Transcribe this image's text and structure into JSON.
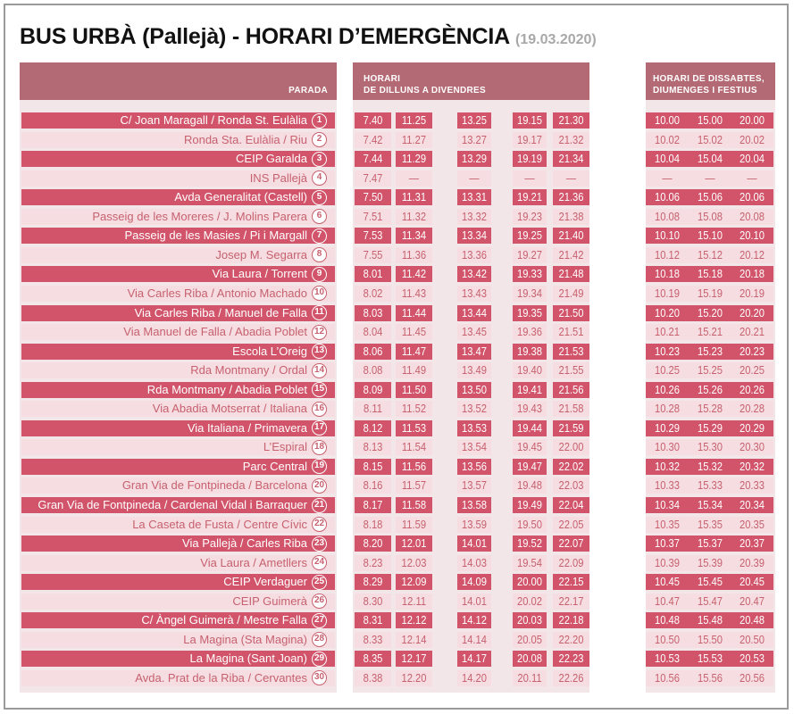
{
  "title": "BUS URBÀ (Pallejà) - HORARI D’EMERGÈNCIA",
  "date": "(19.03.2020)",
  "headers": {
    "parada": "PARADA",
    "weekday_line1": "HORARI",
    "weekday_line2": "DE DILLUNS A DIVENDRES",
    "weekend_line1": "HORARI DE DISSABTES,",
    "weekend_line2": "DIUMENGES I FESTIUS"
  },
  "colors": {
    "dark_row": "#d1546a",
    "light_row": "#f5dde1",
    "header": "#b46a74",
    "panel": "#f3e6e8"
  },
  "stops": [
    {
      "num": "1",
      "name": "C/ Joan Maragall / Ronda St. Eulàlia",
      "weekday": [
        "7.40",
        "11.25",
        "13.25",
        "19.15",
        "21.30"
      ],
      "weekend": [
        "10.00",
        "15.00",
        "20.00"
      ]
    },
    {
      "num": "2",
      "name": "Ronda Sta. Eulàlia / Riu",
      "weekday": [
        "7.42",
        "11.27",
        "13.27",
        "19.17",
        "21.32"
      ],
      "weekend": [
        "10.02",
        "15.02",
        "20.02"
      ]
    },
    {
      "num": "3",
      "name": "CEIP Garalda",
      "weekday": [
        "7.44",
        "11.29",
        "13.29",
        "19.19",
        "21.34"
      ],
      "weekend": [
        "10.04",
        "15.04",
        "20.04"
      ]
    },
    {
      "num": "4",
      "name": "INS Pallejà",
      "weekday": [
        "7.47",
        "—",
        "—",
        "—",
        "—"
      ],
      "weekend": [
        "—",
        "—",
        "—"
      ]
    },
    {
      "num": "5",
      "name": "Avda Generalitat (Castell)",
      "weekday": [
        "7.50",
        "11.31",
        "13.31",
        "19.21",
        "21.36"
      ],
      "weekend": [
        "10.06",
        "15.06",
        "20.06"
      ]
    },
    {
      "num": "6",
      "name": "Passeig de les Moreres / J. Molins Parera",
      "weekday": [
        "7.51",
        "11.32",
        "13.32",
        "19.23",
        "21.38"
      ],
      "weekend": [
        "10.08",
        "15.08",
        "20.08"
      ]
    },
    {
      "num": "7",
      "name": "Passeig de les Masies / Pi i Margall",
      "weekday": [
        "7.53",
        "11.34",
        "13.34",
        "19.25",
        "21.40"
      ],
      "weekend": [
        "10.10",
        "15.10",
        "20.10"
      ]
    },
    {
      "num": "8",
      "name": "Josep M. Segarra",
      "weekday": [
        "7.55",
        "11.36",
        "13.36",
        "19.27",
        "21.42"
      ],
      "weekend": [
        "10.12",
        "15.12",
        "20.12"
      ]
    },
    {
      "num": "9",
      "name": "Via Laura / Torrent",
      "weekday": [
        "8.01",
        "11.42",
        "13.42",
        "19.33",
        "21.48"
      ],
      "weekend": [
        "10.18",
        "15.18",
        "20.18"
      ]
    },
    {
      "num": "10",
      "name": "Via Carles Riba / Antonio Machado",
      "weekday": [
        "8.02",
        "11.43",
        "13.43",
        "19.34",
        "21.49"
      ],
      "weekend": [
        "10.19",
        "15.19",
        "20.19"
      ]
    },
    {
      "num": "11",
      "name": "Via Carles Riba / Manuel de Falla",
      "weekday": [
        "8.03",
        "11.44",
        "13.44",
        "19.35",
        "21.50"
      ],
      "weekend": [
        "10.20",
        "15.20",
        "20.20"
      ]
    },
    {
      "num": "12",
      "name": "Via Manuel de Falla / Abadia Poblet",
      "weekday": [
        "8.04",
        "11.45",
        "13.45",
        "19.36",
        "21.51"
      ],
      "weekend": [
        "10.21",
        "15.21",
        "20.21"
      ]
    },
    {
      "num": "13",
      "name": "Escola L’Oreig",
      "weekday": [
        "8.06",
        "11.47",
        "13.47",
        "19.38",
        "21.53"
      ],
      "weekend": [
        "10.23",
        "15.23",
        "20.23"
      ]
    },
    {
      "num": "14",
      "name": "Rda Montmany / Ordal",
      "weekday": [
        "8.08",
        "11.49",
        "13.49",
        "19.40",
        "21.55"
      ],
      "weekend": [
        "10.25",
        "15.25",
        "20.25"
      ]
    },
    {
      "num": "15",
      "name": "Rda Montmany / Abadia Poblet",
      "weekday": [
        "8.09",
        "11.50",
        "13.50",
        "19.41",
        "21.56"
      ],
      "weekend": [
        "10.26",
        "15.26",
        "20.26"
      ]
    },
    {
      "num": "16",
      "name": "Via Abadia Motserrat / Italiana",
      "weekday": [
        "8.11",
        "11.52",
        "13.52",
        "19.43",
        "21.58"
      ],
      "weekend": [
        "10.28",
        "15.28",
        "20.28"
      ]
    },
    {
      "num": "17",
      "name": "Via Italiana / Primavera",
      "weekday": [
        "8.12",
        "11.53",
        "13.53",
        "19.44",
        "21.59"
      ],
      "weekend": [
        "10.29",
        "15.29",
        "20.29"
      ]
    },
    {
      "num": "18",
      "name": "L’Espiral",
      "weekday": [
        "8.13",
        "11.54",
        "13.54",
        "19.45",
        "22.00"
      ],
      "weekend": [
        "10.30",
        "15.30",
        "20.30"
      ]
    },
    {
      "num": "19",
      "name": "Parc Central",
      "weekday": [
        "8.15",
        "11.56",
        "13.56",
        "19.47",
        "22.02"
      ],
      "weekend": [
        "10.32",
        "15.32",
        "20.32"
      ]
    },
    {
      "num": "20",
      "name": "Gran Via de Fontpineda / Barcelona",
      "weekday": [
        "8.16",
        "11.57",
        "13.57",
        "19.48",
        "22.03"
      ],
      "weekend": [
        "10.33",
        "15.33",
        "20.33"
      ]
    },
    {
      "num": "21",
      "name": "Gran Via de Fontpineda / Cardenal Vidal i Barraquer",
      "weekday": [
        "8.17",
        "11.58",
        "13.58",
        "19.49",
        "22.04"
      ],
      "weekend": [
        "10.34",
        "15.34",
        "20.34"
      ]
    },
    {
      "num": "22",
      "name": "La Caseta de Fusta / Centre Cívic",
      "weekday": [
        "8.18",
        "11.59",
        "13.59",
        "19.50",
        "22.05"
      ],
      "weekend": [
        "10.35",
        "15.35",
        "20.35"
      ]
    },
    {
      "num": "23",
      "name": "Via Pallejà / Carles Riba",
      "weekday": [
        "8.20",
        "12.01",
        "14.01",
        "19.52",
        "22.07"
      ],
      "weekend": [
        "10.37",
        "15.37",
        "20.37"
      ]
    },
    {
      "num": "24",
      "name": "Via Laura / Ametllers",
      "weekday": [
        "8.23",
        "12.03",
        "14.03",
        "19.54",
        "22.09"
      ],
      "weekend": [
        "10.39",
        "15.39",
        "20.39"
      ]
    },
    {
      "num": "25",
      "name": "CEIP Verdaguer",
      "weekday": [
        "8.29",
        "12.09",
        "14.09",
        "20.00",
        "22.15"
      ],
      "weekend": [
        "10.45",
        "15.45",
        "20.45"
      ]
    },
    {
      "num": "26",
      "name": "CEIP Guimerà",
      "weekday": [
        "8.30",
        "12.11",
        "14.01",
        "20.02",
        "22.17"
      ],
      "weekend": [
        "10.47",
        "15.47",
        "20.47"
      ]
    },
    {
      "num": "27",
      "name": "C/ Àngel Guimerà / Mestre Falla",
      "weekday": [
        "8.31",
        "12.12",
        "14.12",
        "20.03",
        "22.18"
      ],
      "weekend": [
        "10.48",
        "15.48",
        "20.48"
      ]
    },
    {
      "num": "28",
      "name": "La Magina (Sta Magina)",
      "weekday": [
        "8.33",
        "12.14",
        "14.14",
        "20.05",
        "22.20"
      ],
      "weekend": [
        "10.50",
        "15.50",
        "20.50"
      ]
    },
    {
      "num": "29",
      "name": "La Magina (Sant Joan)",
      "weekday": [
        "8.35",
        "12.17",
        "14.17",
        "20.08",
        "22.23"
      ],
      "weekend": [
        "10.53",
        "15.53",
        "20.53"
      ]
    },
    {
      "num": "30",
      "name": "Avda. Prat de la Riba / Cervantes",
      "weekday": [
        "8.38",
        "12.20",
        "14.20",
        "20.11",
        "22.26"
      ],
      "weekend": [
        "10.56",
        "15.56",
        "20.56"
      ]
    }
  ]
}
